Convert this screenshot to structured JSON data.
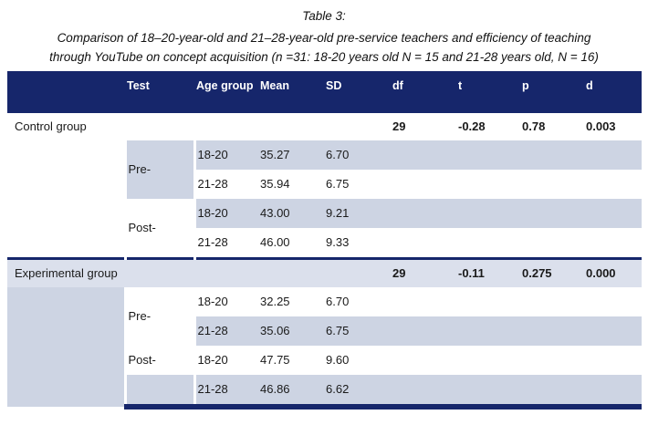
{
  "title": "Table 3:",
  "caption": {
    "line1": "Comparison of 18–20-year-old and 21–28-year-old pre-service teachers and efficiency of teaching",
    "line2": "through YouTube on concept acquisition (n =31: 18-20 years old N = 15 and 21-28 years old, N = 16)"
  },
  "colors": {
    "header_navy": "#16266b",
    "row_shade": "#cdd4e3",
    "experimental_row_tint": "#dbe0ec"
  },
  "header": {
    "labels": [
      "",
      "Test",
      "Age group",
      "Mean",
      "SD",
      "df",
      "t",
      "p",
      "d"
    ]
  },
  "control": {
    "label": "Control group",
    "stats": {
      "df": "29",
      "t": "-0.28",
      "p": "0.78",
      "d": "0.003"
    },
    "rows": [
      {
        "test": "Pre-",
        "age": "18-20",
        "mean": "35.27",
        "sd": "6.70"
      },
      {
        "test": "",
        "age": "21-28",
        "mean": "35.94",
        "sd": "6.75"
      },
      {
        "test": "Post-",
        "age": "18-20",
        "mean": "43.00",
        "sd": "9.21"
      },
      {
        "test": "",
        "age": "21-28",
        "mean": "46.00",
        "sd": "9.33"
      }
    ]
  },
  "experimental": {
    "label": "Experimental group",
    "stats": {
      "df": "29",
      "t": "-0.11",
      "p": "0.275",
      "d": "0.000"
    },
    "rows": [
      {
        "test": "Pre-",
        "age": "18-20",
        "mean": "32.25",
        "sd": "6.70"
      },
      {
        "test": "",
        "age": "21-28",
        "mean": "35.06",
        "sd": "6.75"
      },
      {
        "test": "Post-",
        "age": "18-20",
        "mean": "47.75",
        "sd": "9.60"
      },
      {
        "test": "",
        "age": "21-28",
        "mean": "46.86",
        "sd": "6.62"
      }
    ]
  }
}
